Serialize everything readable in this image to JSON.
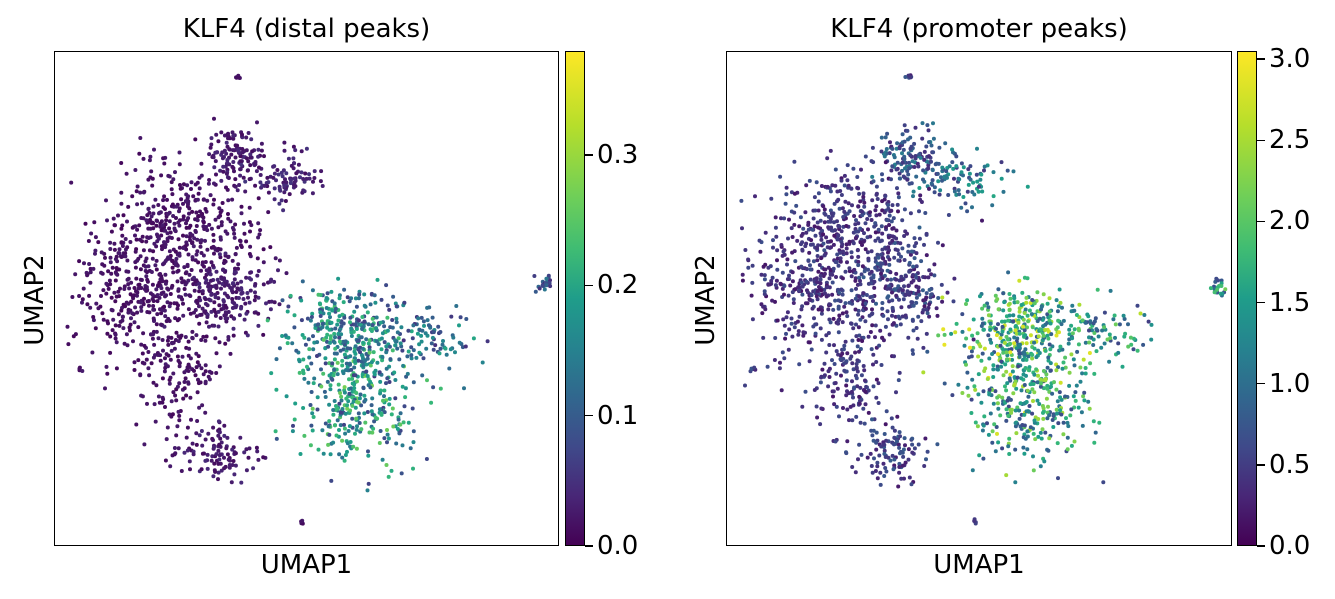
{
  "chart_data": [
    {
      "type": "scatter",
      "title": "KLF4 (distal peaks)",
      "xlabel": "UMAP1",
      "ylabel": "UMAP2",
      "colorbar": {
        "min": 0.0,
        "max": 0.38,
        "ticks": [
          0.0,
          0.1,
          0.2,
          0.3
        ],
        "tick_labels": [
          "0.0",
          "0.1",
          "0.2",
          "0.3"
        ],
        "colormap": "viridis"
      },
      "grid": false,
      "clusters": [
        {
          "x": 0.36,
          "y": 0.79,
          "spread_x": 0.03,
          "spread_y": 0.03,
          "count": 120,
          "level": 0.03
        },
        {
          "x": 0.46,
          "y": 0.74,
          "spread_x": 0.04,
          "spread_y": 0.025,
          "count": 90,
          "level": 0.04
        },
        {
          "x": 0.25,
          "y": 0.64,
          "spread_x": 0.07,
          "spread_y": 0.07,
          "count": 380,
          "level": 0.02
        },
        {
          "x": 0.16,
          "y": 0.52,
          "spread_x": 0.06,
          "spread_y": 0.07,
          "count": 300,
          "level": 0.02
        },
        {
          "x": 0.34,
          "y": 0.52,
          "spread_x": 0.05,
          "spread_y": 0.05,
          "count": 220,
          "level": 0.03
        },
        {
          "x": 0.25,
          "y": 0.35,
          "spread_x": 0.04,
          "spread_y": 0.07,
          "count": 170,
          "level": 0.02
        },
        {
          "x": 0.32,
          "y": 0.19,
          "spread_x": 0.04,
          "spread_y": 0.03,
          "count": 100,
          "level": 0.03
        },
        {
          "x": 0.58,
          "y": 0.43,
          "spread_x": 0.06,
          "spread_y": 0.05,
          "count": 340,
          "level": 0.18
        },
        {
          "x": 0.6,
          "y": 0.29,
          "spread_x": 0.06,
          "spread_y": 0.06,
          "count": 300,
          "level": 0.2
        },
        {
          "x": 0.73,
          "y": 0.43,
          "spread_x": 0.05,
          "spread_y": 0.03,
          "count": 90,
          "level": 0.15
        },
        {
          "x": 0.97,
          "y": 0.53,
          "spread_x": 0.01,
          "spread_y": 0.01,
          "count": 20,
          "level": 0.1
        },
        {
          "x": 0.36,
          "y": 0.95,
          "spread_x": 0.003,
          "spread_y": 0.003,
          "count": 6,
          "level": 0.02
        },
        {
          "x": 0.05,
          "y": 0.36,
          "spread_x": 0.003,
          "spread_y": 0.003,
          "count": 5,
          "level": 0.02
        },
        {
          "x": 0.49,
          "y": 0.05,
          "spread_x": 0.003,
          "spread_y": 0.003,
          "count": 5,
          "level": 0.02
        }
      ]
    },
    {
      "type": "scatter",
      "title": "KLF4 (promoter peaks)",
      "xlabel": "UMAP1",
      "ylabel": "UMAP2",
      "colorbar": {
        "min": 0.0,
        "max": 3.05,
        "ticks": [
          0.0,
          0.5,
          1.0,
          1.5,
          2.0,
          2.5,
          3.0
        ],
        "tick_labels": [
          "0.0",
          "0.5",
          "1.0",
          "1.5",
          "2.0",
          "2.5",
          "3.0"
        ],
        "colormap": "viridis"
      },
      "grid": false,
      "clusters": [
        {
          "x": 0.36,
          "y": 0.79,
          "spread_x": 0.03,
          "spread_y": 0.03,
          "count": 120,
          "level": 0.9
        },
        {
          "x": 0.46,
          "y": 0.74,
          "spread_x": 0.04,
          "spread_y": 0.025,
          "count": 90,
          "level": 1.2
        },
        {
          "x": 0.25,
          "y": 0.64,
          "spread_x": 0.07,
          "spread_y": 0.07,
          "count": 380,
          "level": 0.5
        },
        {
          "x": 0.16,
          "y": 0.52,
          "spread_x": 0.06,
          "spread_y": 0.07,
          "count": 300,
          "level": 0.5
        },
        {
          "x": 0.34,
          "y": 0.52,
          "spread_x": 0.05,
          "spread_y": 0.05,
          "count": 220,
          "level": 0.6
        },
        {
          "x": 0.25,
          "y": 0.35,
          "spread_x": 0.04,
          "spread_y": 0.07,
          "count": 170,
          "level": 0.5
        },
        {
          "x": 0.32,
          "y": 0.19,
          "spread_x": 0.04,
          "spread_y": 0.03,
          "count": 100,
          "level": 0.6
        },
        {
          "x": 0.58,
          "y": 0.43,
          "spread_x": 0.06,
          "spread_y": 0.05,
          "count": 340,
          "level": 2.0
        },
        {
          "x": 0.6,
          "y": 0.29,
          "spread_x": 0.06,
          "spread_y": 0.06,
          "count": 300,
          "level": 1.8
        },
        {
          "x": 0.73,
          "y": 0.43,
          "spread_x": 0.05,
          "spread_y": 0.03,
          "count": 90,
          "level": 1.6
        },
        {
          "x": 0.97,
          "y": 0.53,
          "spread_x": 0.01,
          "spread_y": 0.01,
          "count": 20,
          "level": 1.6
        },
        {
          "x": 0.36,
          "y": 0.95,
          "spread_x": 0.003,
          "spread_y": 0.003,
          "count": 6,
          "level": 0.6
        },
        {
          "x": 0.05,
          "y": 0.36,
          "spread_x": 0.003,
          "spread_y": 0.003,
          "count": 5,
          "level": 0.6
        },
        {
          "x": 0.49,
          "y": 0.05,
          "spread_x": 0.003,
          "spread_y": 0.003,
          "count": 5,
          "level": 0.8
        }
      ]
    }
  ]
}
